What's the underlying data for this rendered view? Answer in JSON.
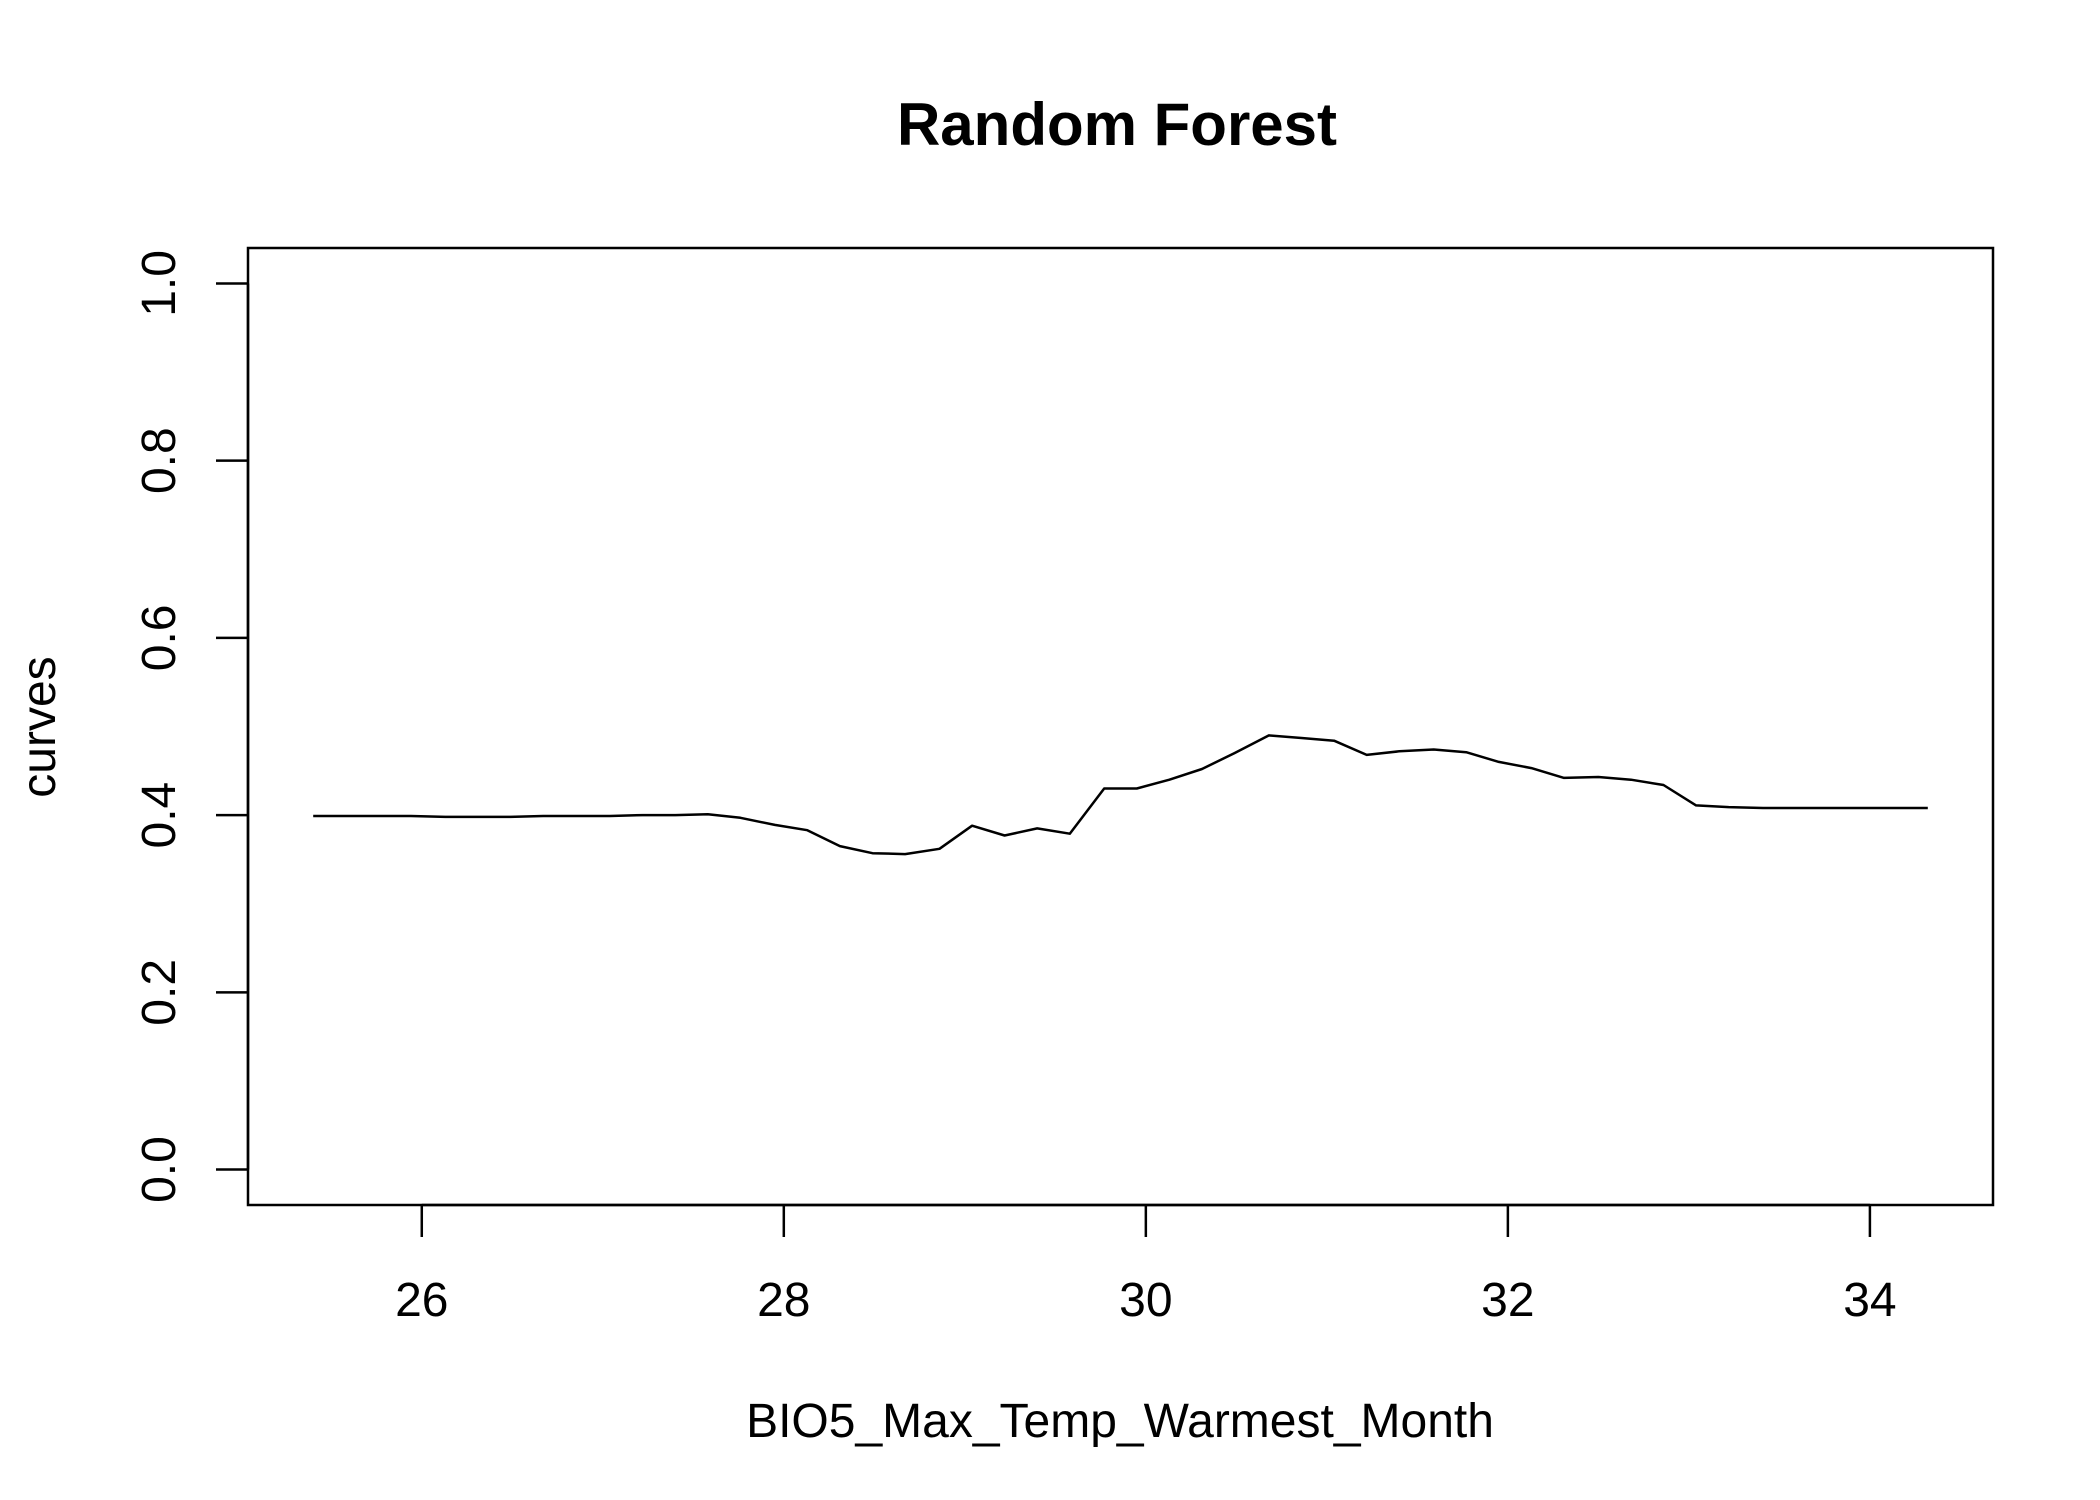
{
  "chart_data": {
    "type": "line",
    "title": "Random Forest",
    "xlabel": "BIO5_Max_Temp_Warmest_Month",
    "ylabel": "curves",
    "xlim": [
      25.04,
      34.68
    ],
    "ylim": [
      -0.04,
      1.04
    ],
    "x_ticks": [
      26,
      28,
      30,
      32,
      34
    ],
    "y_ticks": [
      0.0,
      0.2,
      0.4,
      0.6,
      0.8,
      1.0
    ],
    "x_tick_labels": [
      "26",
      "28",
      "30",
      "32",
      "34"
    ],
    "y_tick_labels": [
      "0.0",
      "0.2",
      "0.4",
      "0.6",
      "0.8",
      "1.0"
    ],
    "grid": false,
    "series": [
      {
        "color": "#000000",
        "x": [
          25.4,
          25.58,
          25.76,
          25.94,
          26.13,
          26.31,
          26.49,
          26.67,
          26.85,
          27.04,
          27.22,
          27.4,
          27.58,
          27.76,
          27.95,
          28.13,
          28.31,
          28.49,
          28.67,
          28.86,
          29.04,
          29.22,
          29.4,
          29.58,
          29.77,
          29.95,
          30.13,
          30.31,
          30.49,
          30.68,
          30.86,
          31.04,
          31.22,
          31.4,
          31.59,
          31.77,
          31.95,
          32.13,
          32.31,
          32.5,
          32.68,
          32.86,
          33.04,
          33.22,
          33.41,
          33.59,
          33.77,
          33.95,
          34.13,
          34.32
        ],
        "y": [
          0.399,
          0.399,
          0.399,
          0.399,
          0.398,
          0.398,
          0.398,
          0.399,
          0.399,
          0.399,
          0.4,
          0.4,
          0.401,
          0.397,
          0.389,
          0.383,
          0.365,
          0.357,
          0.356,
          0.362,
          0.388,
          0.377,
          0.385,
          0.379,
          0.43,
          0.43,
          0.44,
          0.452,
          0.47,
          0.49,
          0.487,
          0.484,
          0.468,
          0.472,
          0.474,
          0.471,
          0.46,
          0.453,
          0.442,
          0.443,
          0.44,
          0.434,
          0.411,
          0.409,
          0.408,
          0.408,
          0.408,
          0.408,
          0.408,
          0.408
        ]
      }
    ]
  }
}
